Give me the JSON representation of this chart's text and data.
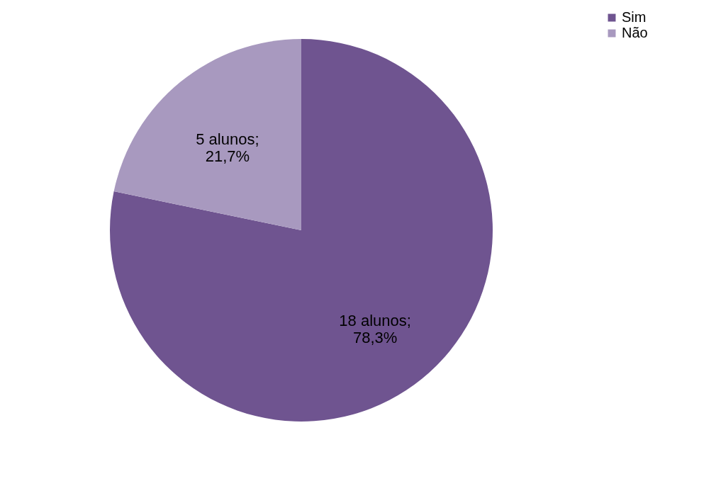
{
  "chart_data": {
    "type": "pie",
    "categories": [
      "Sim",
      "Não"
    ],
    "values": [
      18,
      5
    ],
    "colors": [
      "#6f5490",
      "#a899bf"
    ],
    "value_labels": [
      "18 alunos;\n78,3%",
      "5 alunos;\n21,7%"
    ],
    "legend": "right"
  }
}
